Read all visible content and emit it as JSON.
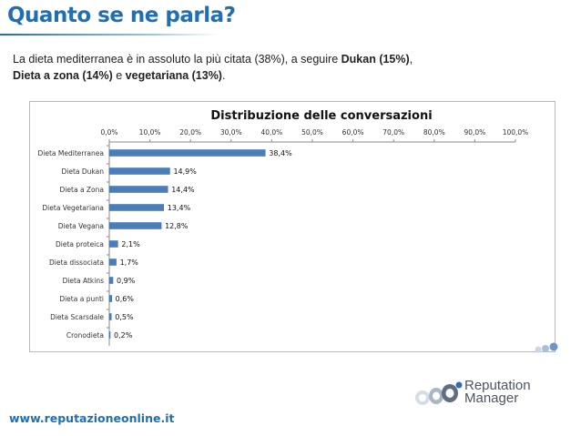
{
  "slide": {
    "title": "Quanto se ne parla?",
    "intro_part1": "La dieta mediterranea è in assoluto la più citata (38%), a seguire ",
    "intro_bold1": "Dukan (15%)",
    "intro_part2": ",",
    "intro_bold2": "Dieta a zona (14%)",
    "intro_part3": " e ",
    "intro_bold3": "vegetariana (13%)",
    "intro_part4": ".",
    "footer_url": "www.reputazioneonline.it",
    "logo_line1": "Reputation",
    "logo_line2": "Manager"
  },
  "colors": {
    "title": "#1f6fb2",
    "bar": "#4a7ebb",
    "bar_edge": "#3a6aa5"
  },
  "chart_data": {
    "type": "bar",
    "orientation": "horizontal",
    "title": "Distribuzione delle conversazioni",
    "categories": [
      "Dieta Mediterranea",
      "Dieta Dukan",
      "Dieta a Zona",
      "Dieta Vegetariana",
      "Dieta Vegana",
      "Dieta proteica",
      "Dieta dissociata",
      "Dieta Atkins",
      "Dieta a punti",
      "Dieta Scarsdale",
      "Cronodieta"
    ],
    "values": [
      38.4,
      14.9,
      14.4,
      13.4,
      12.8,
      2.1,
      1.7,
      0.9,
      0.6,
      0.5,
      0.2
    ],
    "value_labels": [
      "38,4%",
      "14,9%",
      "14,4%",
      "13,4%",
      "12,8%",
      "2,1%",
      "1,7%",
      "0,9%",
      "0,6%",
      "0,5%",
      "0,2%"
    ],
    "xlim": [
      0,
      100
    ],
    "xticks": [
      "0,0%",
      "10,0%",
      "20,0%",
      "30,0%",
      "40,0%",
      "50,0%",
      "60,0%",
      "70,0%",
      "80,0%",
      "90,0%",
      "100,0%"
    ],
    "axis_position": "top",
    "grid": false,
    "legend": "none"
  }
}
